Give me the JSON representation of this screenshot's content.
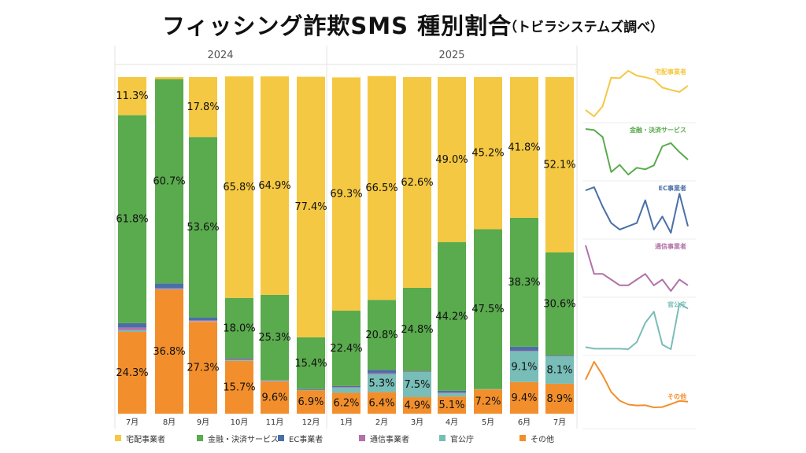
{
  "title": "フィッシング詐欺SMS 種別割合",
  "subtitle": "（トビラシステムズ調べ）",
  "colors": {
    "delivery": "#f4c842",
    "finance": "#5aaa4e",
    "ec": "#4a6fa8",
    "telecom": "#b271a8",
    "government": "#78bdb7",
    "other": "#f28f2c"
  },
  "chart_data": {
    "type": "bar",
    "stacked": true,
    "normalized": true,
    "year_groups": [
      {
        "label": "2024",
        "categories": [
          "7月",
          "8月",
          "9月",
          "10月",
          "11月",
          "12月"
        ]
      },
      {
        "label": "2025",
        "categories": [
          "1月",
          "2月",
          "3月",
          "4月",
          "5月",
          "6月",
          "7月"
        ]
      }
    ],
    "categories": [
      "7月",
      "8月",
      "9月",
      "10月",
      "11月",
      "12月",
      "1月",
      "2月",
      "3月",
      "4月",
      "5月",
      "6月",
      "7月"
    ],
    "ylim": [
      0,
      100
    ],
    "series": [
      {
        "key": "other",
        "name": "その他",
        "values": [
          24.3,
          36.8,
          27.3,
          15.7,
          9.6,
          6.9,
          6.2,
          6.4,
          4.9,
          5.1,
          7.2,
          9.4,
          8.9
        ],
        "labels": [
          "24.3%",
          "36.8%",
          "27.3%",
          "15.7%",
          "9.6%",
          "6.9%",
          "6.2%",
          "6.4%",
          "4.9%",
          "5.1%",
          "7.2%",
          "9.4%",
          "8.9%"
        ]
      },
      {
        "key": "government",
        "name": "官公庁",
        "values": [
          0.5,
          0.2,
          0.2,
          0.2,
          0.2,
          0.1,
          1.5,
          5.3,
          7.5,
          1.0,
          0.1,
          9.1,
          8.1
        ],
        "labels": [
          "",
          "",
          "",
          "",
          "",
          "",
          "",
          "5.3%",
          "7.5%",
          "",
          "",
          "9.1%",
          "8.1%"
        ]
      },
      {
        "key": "telecom",
        "name": "通信事業者",
        "values": [
          0.8,
          0.3,
          0.3,
          0.2,
          0.1,
          0.1,
          0.2,
          0.3,
          0.1,
          0.2,
          0.0,
          0.2,
          0.1
        ],
        "labels": [
          "",
          "",
          "",
          "",
          "",
          "",
          "",
          "",
          "",
          "",
          "",
          "",
          ""
        ]
      },
      {
        "key": "ec",
        "name": "EC事業者",
        "values": [
          1.3,
          1.4,
          0.8,
          0.3,
          0.1,
          0.2,
          0.3,
          1.0,
          0.1,
          0.5,
          0.0,
          1.2,
          0.2
        ],
        "labels": [
          "",
          "",
          "",
          "",
          "",
          "",
          "",
          "",
          "",
          "",
          "",
          "",
          ""
        ]
      },
      {
        "key": "finance",
        "name": "金融・決済サービス",
        "values": [
          61.8,
          60.7,
          53.6,
          18.0,
          25.3,
          15.4,
          22.4,
          20.8,
          24.8,
          44.2,
          47.5,
          38.3,
          30.6
        ],
        "labels": [
          "61.8%",
          "60.7%",
          "53.6%",
          "18.0%",
          "25.3%",
          "15.4%",
          "22.4%",
          "20.8%",
          "24.8%",
          "44.2%",
          "47.5%",
          "38.3%",
          "30.6%"
        ]
      },
      {
        "key": "delivery",
        "name": "宅配事業者",
        "values": [
          11.3,
          0.6,
          17.8,
          65.8,
          64.9,
          77.4,
          69.3,
          66.5,
          62.6,
          49.0,
          45.2,
          41.8,
          52.1
        ],
        "labels": [
          "11.3%",
          "",
          "17.8%",
          "65.8%",
          "64.9%",
          "77.4%",
          "69.3%",
          "66.5%",
          "62.6%",
          "49.0%",
          "45.2%",
          "41.8%",
          "52.1%"
        ]
      }
    ],
    "legend": [
      "宅配事業者",
      "金融・決済サービス",
      "EC事業者",
      "通信事業者",
      "官公庁",
      "その他"
    ],
    "legend_position": "bottom",
    "sparklines": [
      "宅配事業者",
      "金融・決済サービス",
      "EC事業者",
      "通信事業者",
      "官公庁",
      "その他"
    ]
  }
}
